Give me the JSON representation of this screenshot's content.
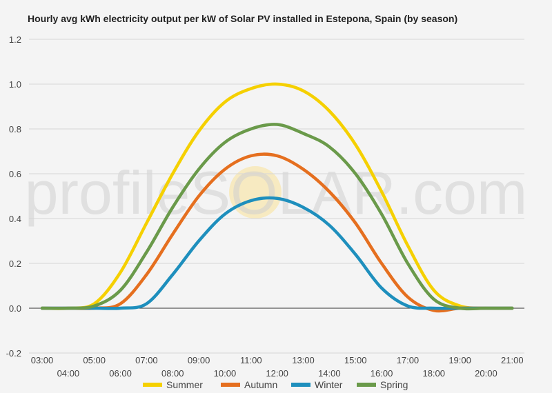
{
  "chart_data": {
    "type": "line",
    "title": "Hourly avg kWh electricity output per kW of Solar PV installed in Estepona, Spain (by season)",
    "xlabel": "",
    "ylabel": "",
    "ylim": [
      -0.2,
      1.2
    ],
    "yticks": [
      "-0.2",
      "0.0",
      "0.2",
      "0.4",
      "0.6",
      "0.8",
      "1.0",
      "1.2"
    ],
    "x": [
      "03:00",
      "04:00",
      "05:00",
      "06:00",
      "07:00",
      "08:00",
      "09:00",
      "10:00",
      "11:00",
      "12:00",
      "13:00",
      "14:00",
      "15:00",
      "16:00",
      "17:00",
      "18:00",
      "19:00",
      "20:00",
      "21:00"
    ],
    "grid": true,
    "legend": "bottom",
    "watermark": "profileSOLAR.com",
    "series": [
      {
        "name": "Summer",
        "color": "#f5d000",
        "values": [
          0,
          0,
          0.02,
          0.16,
          0.38,
          0.6,
          0.79,
          0.92,
          0.98,
          1.0,
          0.97,
          0.88,
          0.73,
          0.52,
          0.28,
          0.08,
          0.01,
          0,
          0
        ]
      },
      {
        "name": "Autumn",
        "color": "#e56f1f",
        "values": [
          0,
          0,
          0,
          0.02,
          0.15,
          0.33,
          0.5,
          0.62,
          0.68,
          0.68,
          0.62,
          0.52,
          0.38,
          0.2,
          0.05,
          -0.01,
          0,
          0,
          0
        ]
      },
      {
        "name": "Winter",
        "color": "#1e8fbd",
        "values": [
          0,
          0,
          0,
          0,
          0.02,
          0.15,
          0.3,
          0.42,
          0.48,
          0.49,
          0.45,
          0.37,
          0.24,
          0.09,
          0.01,
          0,
          0,
          0,
          0
        ]
      },
      {
        "name": "Spring",
        "color": "#6a9a4a",
        "values": [
          0,
          0,
          0.01,
          0.08,
          0.25,
          0.45,
          0.62,
          0.74,
          0.8,
          0.82,
          0.78,
          0.72,
          0.6,
          0.42,
          0.2,
          0.04,
          0,
          0,
          0
        ]
      }
    ]
  }
}
